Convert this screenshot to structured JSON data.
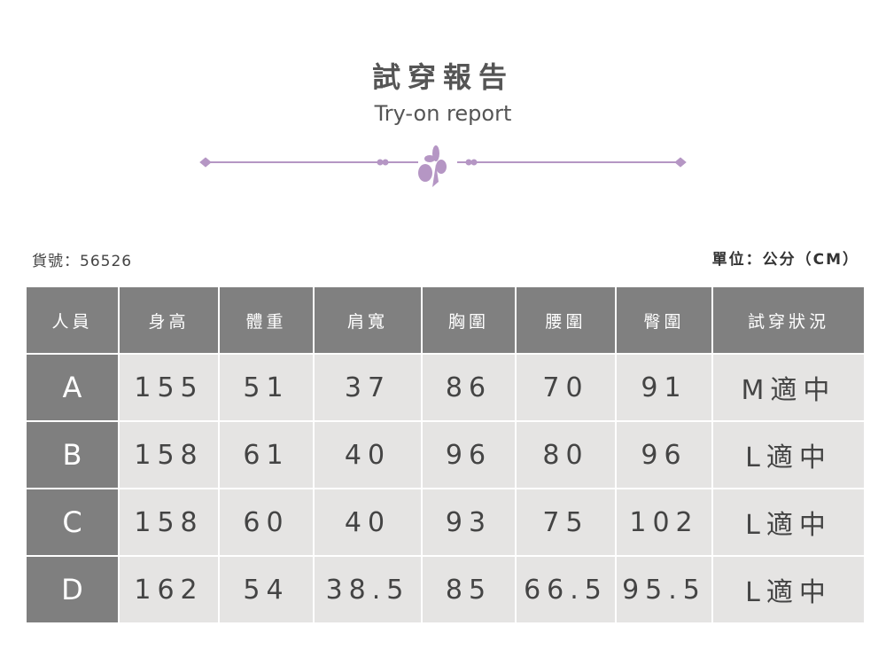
{
  "header": {
    "title": "試穿報告",
    "subtitle": "Try-on report",
    "accent": "#b596c4"
  },
  "sku": "貨號：56526",
  "unit": "單位：公分（CM）",
  "table": {
    "headers": [
      "人員",
      "身高",
      "體重",
      "肩寬",
      "胸圍",
      "腰圍",
      "臀圍",
      "試穿狀況"
    ],
    "rows": [
      [
        "A",
        "155",
        "51",
        "37",
        "86",
        "70",
        "91",
        "M適中"
      ],
      [
        "B",
        "158",
        "61",
        "40",
        "96",
        "80",
        "96",
        "L適中"
      ],
      [
        "C",
        "158",
        "60",
        "40",
        "93",
        "75",
        "102",
        "L適中"
      ],
      [
        "D",
        "162",
        "54",
        "38.5",
        "85",
        "66.5",
        "95.5",
        "L適中"
      ]
    ]
  }
}
